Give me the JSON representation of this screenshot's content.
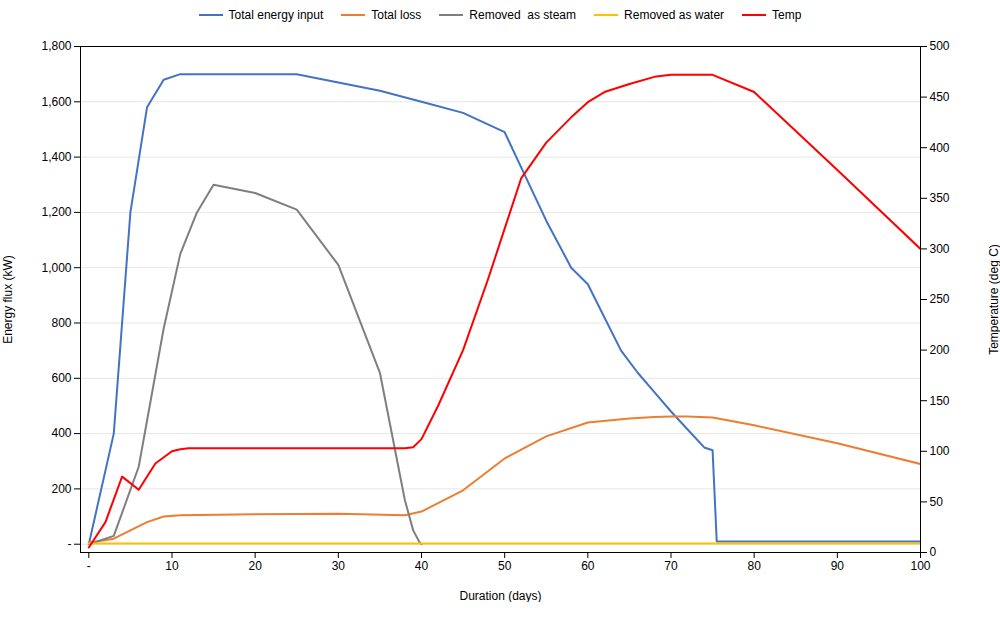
{
  "chart_data": {
    "type": "line",
    "xlabel": "Duration (days)",
    "ylabel": "Energy flux (kW)",
    "y2label": "Temperature (deg C)",
    "xlim": [
      -1,
      100
    ],
    "xticks": [
      {
        "value": 0,
        "label": "-"
      },
      10,
      20,
      30,
      40,
      50,
      60,
      70,
      80,
      90,
      100
    ],
    "ylim": [
      -30,
      1800
    ],
    "yticks": [
      {
        "value": 0,
        "label": "-"
      },
      200,
      400,
      600,
      800,
      {
        "value": 1000,
        "label": "1,000"
      },
      {
        "value": 1200,
        "label": "1,200"
      },
      {
        "value": 1400,
        "label": "1,400"
      },
      {
        "value": 1600,
        "label": "1,600"
      },
      {
        "value": 1800,
        "label": "1,800"
      }
    ],
    "y2lim": [
      0,
      500
    ],
    "y2ticks": [
      0,
      50,
      100,
      150,
      200,
      250,
      300,
      350,
      400,
      450,
      500
    ],
    "grid": true,
    "legend": "top",
    "series": [
      {
        "name": "Total energy input",
        "color": "#4472C4",
        "x": [
          0,
          3,
          5,
          7,
          9,
          11,
          13,
          25,
          30,
          35,
          40,
          45,
          50,
          55,
          58,
          60,
          62,
          64,
          66,
          68,
          70,
          72,
          74,
          75,
          75.5,
          76,
          100
        ],
        "values": [
          0,
          400,
          1200,
          1580,
          1680,
          1700,
          1700,
          1700,
          1670,
          1640,
          1600,
          1560,
          1490,
          1170,
          1000,
          940,
          820,
          700,
          620,
          550,
          480,
          415,
          350,
          340,
          10,
          10,
          10
        ]
      },
      {
        "name": "Total loss",
        "color": "#ED7D31",
        "x": [
          0,
          3,
          5,
          7,
          9,
          11,
          20,
          30,
          38,
          40,
          45,
          50,
          55,
          60,
          65,
          68,
          70,
          72,
          75,
          80,
          90,
          100
        ],
        "values": [
          5,
          20,
          50,
          80,
          100,
          105,
          108,
          110,
          105,
          118,
          195,
          310,
          390,
          440,
          455,
          460,
          462,
          462,
          458,
          430,
          365,
          290
        ]
      },
      {
        "name": "Removed  as steam",
        "color": "#7F7F7F",
        "x": [
          0,
          3,
          6,
          9,
          11,
          13,
          15,
          20,
          25,
          30,
          35,
          38,
          39,
          39.8,
          40
        ],
        "values": [
          0,
          30,
          280,
          780,
          1050,
          1200,
          1300,
          1270,
          1210,
          1010,
          620,
          160,
          50,
          5,
          0
        ]
      },
      {
        "name": "Removed as water",
        "color": "#FFC000",
        "x": [
          0,
          75,
          76,
          100
        ],
        "values": [
          3,
          3,
          3,
          3
        ]
      },
      {
        "name": "Temp",
        "color": "#FF0000",
        "axis": "y2",
        "x": [
          0,
          2,
          4,
          6,
          8,
          10,
          11,
          12,
          38,
          39,
          40,
          42,
          45,
          48,
          50,
          52,
          55,
          58,
          60,
          62,
          65,
          68,
          70,
          72,
          75,
          80,
          90,
          100
        ],
        "values": [
          5,
          30,
          75,
          62,
          88,
          100,
          102,
          103,
          103,
          104,
          112,
          145,
          200,
          270,
          320,
          370,
          405,
          430,
          445,
          455,
          463,
          470,
          472,
          472,
          472,
          455,
          378,
          300
        ]
      }
    ]
  }
}
